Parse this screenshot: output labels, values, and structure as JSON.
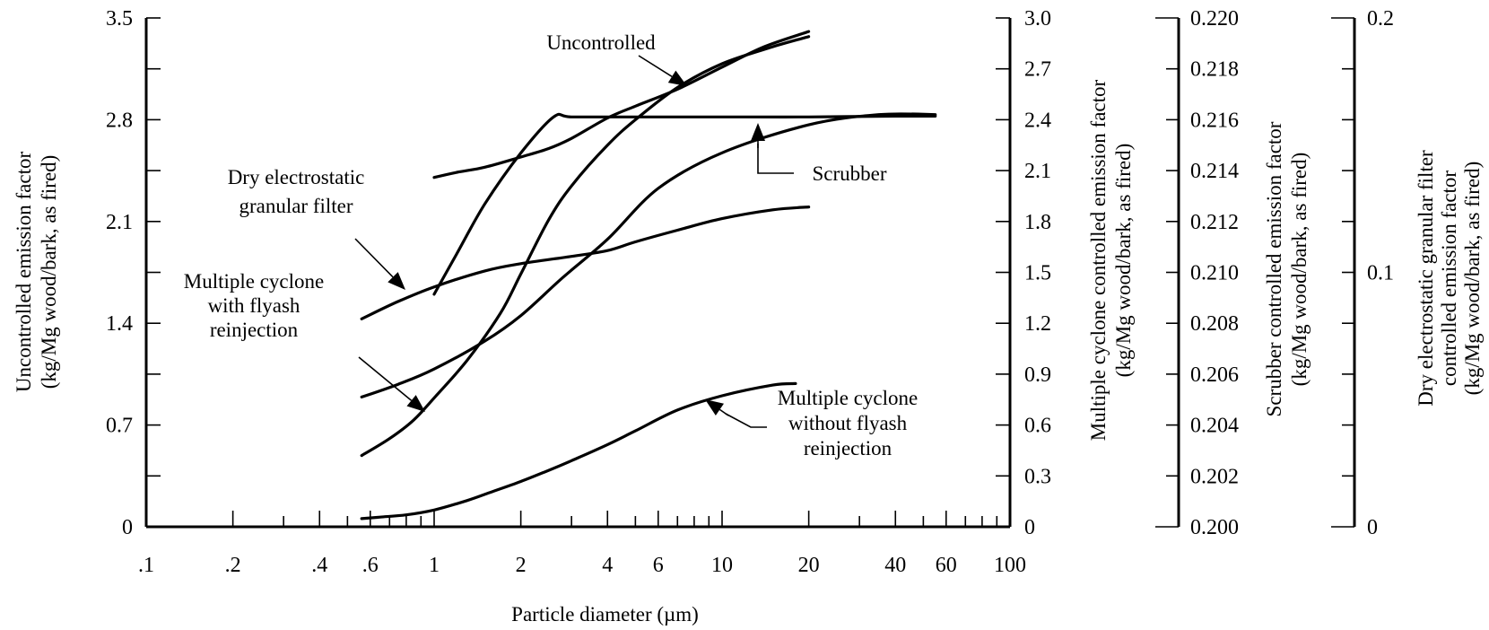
{
  "chart_data": {
    "type": "line",
    "title": "",
    "xlabel": "Particle diameter   (µm)",
    "x_scale": "log",
    "xlim": [
      0.1,
      100
    ],
    "x_tick_labels": [
      {
        "value": 0.1,
        "label": ".1"
      },
      {
        "value": 0.2,
        "label": ".2"
      },
      {
        "value": 0.4,
        "label": ".4"
      },
      {
        "value": 0.6,
        "label": ".6"
      },
      {
        "value": 1,
        "label": "1"
      },
      {
        "value": 2,
        "label": "2"
      },
      {
        "value": 4,
        "label": "4"
      },
      {
        "value": 6,
        "label": "6"
      },
      {
        "value": 10,
        "label": "10"
      },
      {
        "value": 20,
        "label": "20"
      },
      {
        "value": 40,
        "label": "40"
      },
      {
        "value": 60,
        "label": "60"
      },
      {
        "value": 100,
        "label": "100"
      }
    ],
    "x_minor_ticks": [
      0.3,
      0.5,
      0.7,
      0.8,
      0.9,
      3,
      5,
      7,
      8,
      9,
      30,
      50,
      70,
      80,
      90
    ],
    "grid": false,
    "y_axes": [
      {
        "id": "uncontrolled",
        "position": "left",
        "title": [
          "Uncontrolled emission factor",
          "(kg/Mg wood/bark, as fired)"
        ],
        "ylim": [
          0,
          3.5
        ],
        "ticks": [
          0,
          0.35,
          0.7,
          1.05,
          1.4,
          1.75,
          2.1,
          2.45,
          2.8,
          3.15,
          3.5
        ],
        "tick_labels": [
          "0",
          "",
          "0.7",
          "",
          "1.4",
          "",
          "2.1",
          "",
          "2.8",
          "",
          "3.5"
        ]
      },
      {
        "id": "multiple_cyclone",
        "position": "right",
        "title": [
          "Multiple cyclone controlled emission factor",
          "(kg/Mg wood/bark, as fired)"
        ],
        "ylim": [
          0,
          3.0
        ],
        "ticks": [
          0,
          0.3,
          0.6,
          0.9,
          1.2,
          1.5,
          1.8,
          2.1,
          2.4,
          2.7,
          3.0
        ],
        "tick_labels": [
          "0",
          "0.3",
          "0.6",
          "0.9",
          "1.2",
          "1.5",
          "1.8",
          "2.1",
          "2.4",
          "2.7",
          "3.0"
        ]
      },
      {
        "id": "scrubber",
        "position": "right",
        "title": [
          "Scrubber controlled emission factor",
          "(kg/Mg wood/bark, as fired)"
        ],
        "ylim": [
          0.2,
          0.22
        ],
        "ticks": [
          0.2,
          0.202,
          0.204,
          0.206,
          0.208,
          0.21,
          0.212,
          0.214,
          0.216,
          0.218,
          0.22
        ],
        "tick_labels": [
          "0.200",
          "0.202",
          "0.204",
          "0.206",
          "0.208",
          "0.210",
          "0.212",
          "0.214",
          "0.216",
          "0.218",
          "0.220"
        ]
      },
      {
        "id": "degf",
        "position": "right",
        "title": [
          "Dry electrostatic granular filter",
          "controlled emission factor",
          "(kg/Mg wood/bark, as fired)"
        ],
        "ylim": [
          0,
          0.2
        ],
        "ticks": [
          0,
          0.02,
          0.04,
          0.06,
          0.08,
          0.1,
          0.12,
          0.14,
          0.16,
          0.18,
          0.2
        ],
        "tick_labels": [
          "0",
          "",
          "",
          "",
          "",
          "0.1",
          "",
          "",
          "",
          "",
          "0.2"
        ]
      }
    ],
    "series": [
      {
        "name": "Uncontrolled",
        "axis": "uncontrolled",
        "x": [
          0.56,
          0.75,
          1.0,
          1.5,
          2.0,
          3.0,
          4.0,
          5.0,
          7.0,
          10.0,
          15.0,
          20.0
        ],
        "y": [
          1.43,
          1.55,
          1.65,
          1.76,
          1.81,
          1.86,
          1.9,
          1.96,
          2.04,
          2.12,
          2.18,
          2.2
        ]
      },
      {
        "name": "Scrubber",
        "axis": "scrubber",
        "x": [
          0.56,
          0.75,
          1.0,
          1.5,
          2.0,
          2.8,
          4.0,
          6.0,
          10.0,
          20.0,
          35.0,
          55.0
        ],
        "y": [
          0.2051,
          0.2056,
          0.2062,
          0.2073,
          0.2083,
          0.2098,
          0.2113,
          0.2133,
          0.2147,
          0.2158,
          0.2162,
          0.2162
        ]
      },
      {
        "name": "Multiple cyclone with flyash reinjection",
        "axis": "multiple_cyclone",
        "x": [
          1.0,
          1.2,
          1.5,
          2.0,
          2.5,
          3.0,
          4.0,
          5.0,
          7.0,
          10.0,
          14.0,
          20.0
        ],
        "y": [
          2.06,
          2.09,
          2.12,
          2.18,
          2.23,
          2.29,
          2.41,
          2.48,
          2.58,
          2.71,
          2.83,
          2.92
        ]
      },
      {
        "name": "Multiple cyclone without flyash reinjection",
        "axis": "multiple_cyclone",
        "x": [
          0.56,
          0.7,
          0.85,
          1.0,
          1.3,
          1.7,
          2.0,
          2.5,
          3.0,
          4.0,
          5.0,
          7.0,
          10.0,
          15.0,
          20.0
        ],
        "y": [
          0.42,
          0.52,
          0.63,
          0.76,
          0.98,
          1.26,
          1.49,
          1.81,
          2.01,
          2.25,
          2.4,
          2.59,
          2.73,
          2.83,
          2.89
        ]
      },
      {
        "name": "Dry electrostatic granular filter",
        "axis": "degf",
        "x": [
          0.56,
          0.65,
          0.8,
          1.0,
          1.3,
          1.6,
          2.0,
          2.5,
          3.0,
          4.0,
          5.0,
          7.0,
          10.0,
          15.0,
          18.0
        ],
        "y": [
          0.0032,
          0.0038,
          0.0047,
          0.0066,
          0.0103,
          0.0139,
          0.0178,
          0.0222,
          0.026,
          0.0323,
          0.0377,
          0.0459,
          0.0515,
          0.0557,
          0.0563
        ]
      },
      {
        "name": "Dry electrostatic granular filter (upper branch)",
        "axis": "degf",
        "x": [
          1.0,
          1.2,
          1.5,
          2.0,
          2.6,
          3.0,
          5.0,
          10.0,
          20.0,
          40.0,
          55.0
        ],
        "y": [
          0.0914,
          0.1074,
          0.1269,
          0.1469,
          0.1611,
          0.1611,
          0.1611,
          0.1611,
          0.1611,
          0.1614,
          0.1614
        ]
      }
    ],
    "annotations": [
      {
        "text": [
          "Uncontrolled"
        ]
      },
      {
        "text": [
          "Scrubber"
        ]
      },
      {
        "text": [
          "Dry electrostatic",
          "granular filter"
        ]
      },
      {
        "text": [
          "Multiple cyclone",
          "with flyash",
          "reinjection"
        ]
      },
      {
        "text": [
          "Multiple cyclone",
          "without flyash",
          "reinjection"
        ]
      }
    ]
  }
}
